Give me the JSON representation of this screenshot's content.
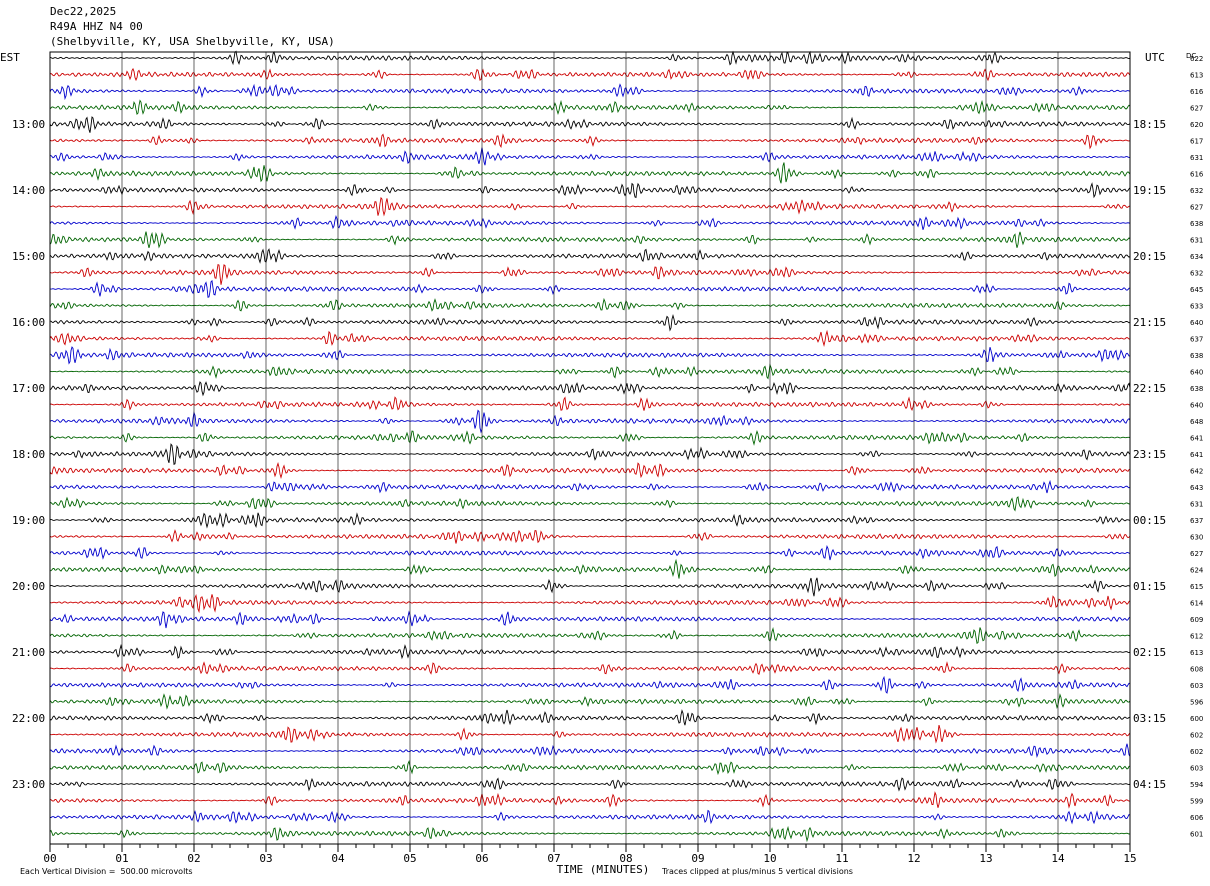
{
  "header": {
    "date": "Dec22,2025",
    "station": "R49A HHZ N4 00",
    "location": "(Shelbyville, KY, USA Shelbyville, KY, USA)"
  },
  "chart_data": {
    "type": "line",
    "title": "Dec22,2025",
    "left_timezone": "EST",
    "right_timezone": "UTC",
    "dc_label": "DC",
    "xlabel": "TIME (MINUTES)",
    "xlim": [
      0,
      15
    ],
    "x_ticks": [
      "00",
      "01",
      "02",
      "03",
      "04",
      "05",
      "06",
      "07",
      "08",
      "09",
      "10",
      "11",
      "12",
      "13",
      "14",
      "15"
    ],
    "left_hour_labels": [
      {
        "row": 4,
        "text": "13:00"
      },
      {
        "row": 8,
        "text": "14:00"
      },
      {
        "row": 12,
        "text": "15:00"
      },
      {
        "row": 16,
        "text": "16:00"
      },
      {
        "row": 20,
        "text": "17:00"
      },
      {
        "row": 24,
        "text": "18:00"
      },
      {
        "row": 28,
        "text": "19:00"
      },
      {
        "row": 32,
        "text": "20:00"
      },
      {
        "row": 36,
        "text": "21:00"
      },
      {
        "row": 40,
        "text": "22:00"
      },
      {
        "row": 44,
        "text": "23:00"
      }
    ],
    "right_hour_labels": [
      {
        "row": 4,
        "text": "18:15"
      },
      {
        "row": 8,
        "text": "19:15"
      },
      {
        "row": 12,
        "text": "20:15"
      },
      {
        "row": 16,
        "text": "21:15"
      },
      {
        "row": 20,
        "text": "22:15"
      },
      {
        "row": 24,
        "text": "23:15"
      },
      {
        "row": 28,
        "text": "00:15"
      },
      {
        "row": 32,
        "text": "01:15"
      },
      {
        "row": 36,
        "text": "02:15"
      },
      {
        "row": 40,
        "text": "03:15"
      },
      {
        "row": 44,
        "text": "04:15"
      }
    ],
    "trace_colors": [
      "#000000",
      "#cc0000",
      "#0000cc",
      "#006400"
    ],
    "dc_offsets": [
      622,
      613,
      616,
      627,
      620,
      617,
      631,
      616,
      632,
      627,
      638,
      631,
      634,
      632,
      645,
      633,
      640,
      637,
      638,
      640,
      638,
      640,
      648,
      641,
      641,
      642,
      643,
      631,
      637,
      630,
      627,
      624,
      615,
      614,
      609,
      612,
      613,
      608,
      603,
      596,
      600,
      602,
      602,
      603,
      594,
      599,
      606,
      601
    ],
    "footer": {
      "scale_note": "Each Vertical Division =  500.00 microvolts",
      "clip_note": "Traces clipped at plus/minus 5 vertical divisions"
    }
  }
}
